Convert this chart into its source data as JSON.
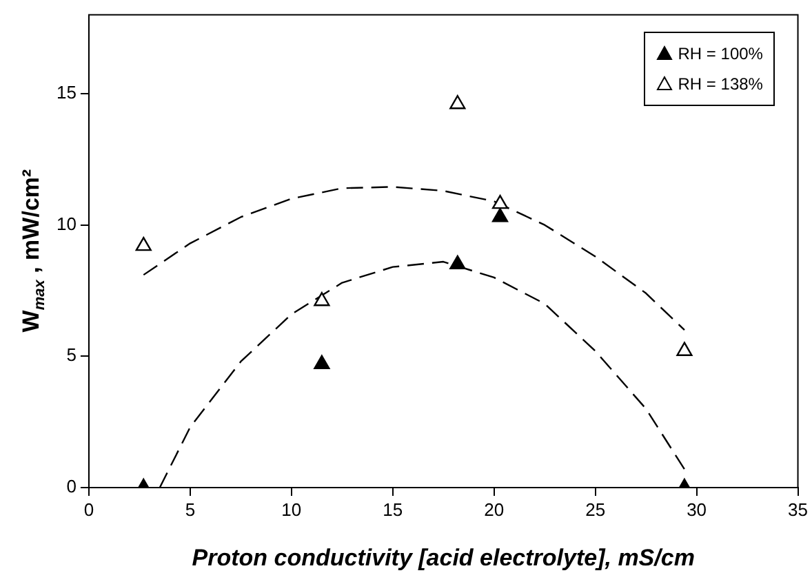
{
  "chart_data": {
    "type": "scatter",
    "xlabel": "Proton conductivity [acid electrolyte], mS/cm",
    "ylabel": "W$_{max}$ , mW/cm²",
    "xlim": [
      0,
      35
    ],
    "xticks": [
      0,
      5,
      10,
      15,
      20,
      25,
      30,
      35
    ],
    "ylim": [
      0,
      18
    ],
    "yticks": [
      0,
      5,
      10,
      15
    ],
    "grid": false,
    "legend": "top right",
    "marker": "triangle",
    "series": [
      {
        "name": "RH = 100%",
        "color": "#000000",
        "x": [
          2.7,
          11.5,
          18.2,
          20.3,
          29.4
        ],
        "values": [
          0,
          4.7,
          8.5,
          10.3,
          0
        ]
      },
      {
        "name": "RH = 138%",
        "color": "#ffffff",
        "x": [
          2.7,
          11.5,
          18.2,
          20.3,
          29.4
        ],
        "values": [
          9.2,
          7.1,
          14.6,
          10.8,
          5.2
        ]
      },
      {
        "type": "line",
        "color": "#000000",
        "marker": "none",
        "line_style": "dashed",
        "x": [
          2.7,
          5,
          7.5,
          10,
          12.5,
          15,
          17.5,
          20,
          22.5,
          25,
          27.5,
          29.4
        ],
        "values": [
          8.1,
          9.3,
          10.3,
          11.0,
          11.4,
          11.45,
          11.3,
          10.9,
          10.0,
          8.8,
          7.4,
          6.0
        ]
      },
      {
        "type": "line",
        "color": "#000000",
        "marker": "none",
        "line_style": "dashed",
        "x": [
          3.5,
          5,
          7.5,
          10,
          12.5,
          15,
          17.5,
          20,
          22.5,
          25,
          27.5,
          29.4
        ],
        "values": [
          0,
          2.3,
          4.8,
          6.6,
          7.8,
          8.4,
          8.6,
          8.0,
          7.0,
          5.2,
          3.0,
          0.7
        ]
      }
    ]
  }
}
